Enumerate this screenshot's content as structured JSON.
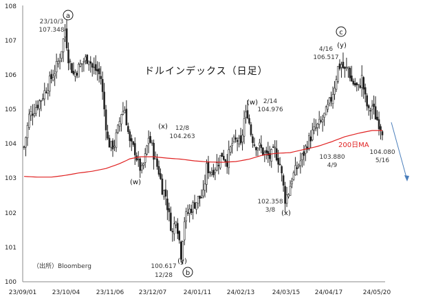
{
  "chart_data": {
    "type": "candlestick",
    "title": "ドルインデックス（日足）",
    "source": "（出所）Bloomberg",
    "ylim": [
      100,
      108
    ],
    "yticks": [
      "100",
      "101",
      "102",
      "103",
      "104",
      "105",
      "106",
      "107",
      "108"
    ],
    "xtick_labels": [
      "23/09/01",
      "23/10/04",
      "23/11/06",
      "23/12/07",
      "24/01/11",
      "24/02/13",
      "24/03/15",
      "24/04/17",
      "24/05/20"
    ],
    "ma_label": "200日MA",
    "ma_color": "#e02020",
    "candle_color": "#222222",
    "arrow_color": "#4a7ebb",
    "annotations": [
      {
        "id": "a_date",
        "text": "23/10/3"
      },
      {
        "id": "a_value",
        "text": "107.348"
      },
      {
        "id": "x1_date",
        "text": "12/8"
      },
      {
        "id": "x1_value",
        "text": "104.263"
      },
      {
        "id": "b_value",
        "text": "100.617"
      },
      {
        "id": "b_date",
        "text": "12/28"
      },
      {
        "id": "w2_date",
        "text": "2/14"
      },
      {
        "id": "w2_value",
        "text": "104.976"
      },
      {
        "id": "x2_value",
        "text": "102.358"
      },
      {
        "id": "x2_date",
        "text": "3/8"
      },
      {
        "id": "ma_value",
        "text": "103.880"
      },
      {
        "id": "ma_date",
        "text": "4/9"
      },
      {
        "id": "c_date",
        "text": "4/16"
      },
      {
        "id": "c_value",
        "text": "106.517"
      },
      {
        "id": "last_value",
        "text": "104.080"
      },
      {
        "id": "last_date",
        "text": "5/16"
      }
    ],
    "wave_labels": [
      {
        "id": "w1",
        "text": "(w)"
      },
      {
        "id": "x1",
        "text": "(x)"
      },
      {
        "id": "y1",
        "text": "(y)"
      },
      {
        "id": "w2",
        "text": "(w)"
      },
      {
        "id": "x2",
        "text": "(x)"
      },
      {
        "id": "y2",
        "text": "(y)"
      }
    ],
    "circled_labels": [
      {
        "id": "a",
        "text": "a"
      },
      {
        "id": "b",
        "text": "b"
      },
      {
        "id": "c",
        "text": "c"
      }
    ],
    "close_path": [
      [
        0,
        103.9
      ],
      [
        3,
        104.8
      ],
      [
        6,
        105.0
      ],
      [
        10,
        105.3
      ],
      [
        14,
        105.7
      ],
      [
        18,
        106.1
      ],
      [
        21,
        106.5
      ],
      [
        23,
        107.0
      ],
      [
        24,
        107.3
      ],
      [
        26,
        106.5
      ],
      [
        29,
        106.0
      ],
      [
        32,
        106.2
      ],
      [
        35,
        106.4
      ],
      [
        38,
        106.5
      ],
      [
        40,
        106.2
      ],
      [
        43,
        106.1
      ],
      [
        45,
        105.9
      ],
      [
        47,
        105.0
      ],
      [
        49,
        104.1
      ],
      [
        51,
        103.9
      ],
      [
        53,
        104.0
      ],
      [
        55,
        104.4
      ],
      [
        57,
        104.9
      ],
      [
        59,
        105.0
      ],
      [
        62,
        104.0
      ],
      [
        65,
        103.8
      ],
      [
        67,
        103.4
      ],
      [
        69,
        103.2
      ],
      [
        71,
        103.6
      ],
      [
        73,
        104.2
      ],
      [
        75,
        103.9
      ],
      [
        77,
        103.5
      ],
      [
        79,
        103.2
      ],
      [
        81,
        102.7
      ],
      [
        83,
        102.5
      ],
      [
        85,
        101.9
      ],
      [
        87,
        101.4
      ],
      [
        89,
        101.9
      ],
      [
        91,
        101.2
      ],
      [
        92,
        100.8
      ],
      [
        94,
        101.8
      ],
      [
        96,
        102.0
      ],
      [
        99,
        102.2
      ],
      [
        102,
        102.4
      ],
      [
        105,
        102.5
      ],
      [
        107,
        103.3
      ],
      [
        110,
        103.2
      ],
      [
        113,
        103.4
      ],
      [
        116,
        103.7
      ],
      [
        119,
        103.5
      ],
      [
        122,
        104.0
      ],
      [
        125,
        104.1
      ],
      [
        127,
        103.9
      ],
      [
        129,
        104.7
      ],
      [
        131,
        104.9
      ],
      [
        133,
        104.3
      ],
      [
        135,
        104.0
      ],
      [
        138,
        103.9
      ],
      [
        141,
        103.7
      ],
      [
        144,
        103.6
      ],
      [
        147,
        103.8
      ],
      [
        150,
        103.4
      ],
      [
        153,
        102.4
      ],
      [
        155,
        102.6
      ],
      [
        157,
        103.0
      ],
      [
        160,
        103.3
      ],
      [
        163,
        103.6
      ],
      [
        166,
        104.0
      ],
      [
        169,
        104.3
      ],
      [
        172,
        104.5
      ],
      [
        174,
        104.6
      ],
      [
        177,
        104.9
      ],
      [
        180,
        105.3
      ],
      [
        182,
        105.7
      ],
      [
        184,
        106.2
      ],
      [
        186,
        106.3
      ],
      [
        188,
        106.1
      ],
      [
        190,
        106.2
      ],
      [
        192,
        105.8
      ],
      [
        194,
        105.7
      ],
      [
        196,
        105.6
      ],
      [
        198,
        105.9
      ],
      [
        200,
        105.3
      ],
      [
        202,
        104.9
      ],
      [
        204,
        105.1
      ],
      [
        206,
        104.8
      ],
      [
        208,
        104.6
      ],
      [
        210,
        104.4
      ]
    ],
    "ma_path": [
      [
        0,
        103.05
      ],
      [
        8,
        103.03
      ],
      [
        16,
        103.03
      ],
      [
        24,
        103.08
      ],
      [
        32,
        103.15
      ],
      [
        40,
        103.2
      ],
      [
        48,
        103.28
      ],
      [
        56,
        103.42
      ],
      [
        62,
        103.56
      ],
      [
        68,
        103.62
      ],
      [
        76,
        103.62
      ],
      [
        84,
        103.58
      ],
      [
        92,
        103.55
      ],
      [
        100,
        103.5
      ],
      [
        108,
        103.47
      ],
      [
        116,
        103.46
      ],
      [
        124,
        103.48
      ],
      [
        132,
        103.55
      ],
      [
        140,
        103.67
      ],
      [
        148,
        103.72
      ],
      [
        156,
        103.74
      ],
      [
        164,
        103.83
      ],
      [
        172,
        103.92
      ],
      [
        180,
        104.05
      ],
      [
        188,
        104.2
      ],
      [
        196,
        104.3
      ],
      [
        204,
        104.38
      ],
      [
        210,
        104.38
      ]
    ]
  }
}
